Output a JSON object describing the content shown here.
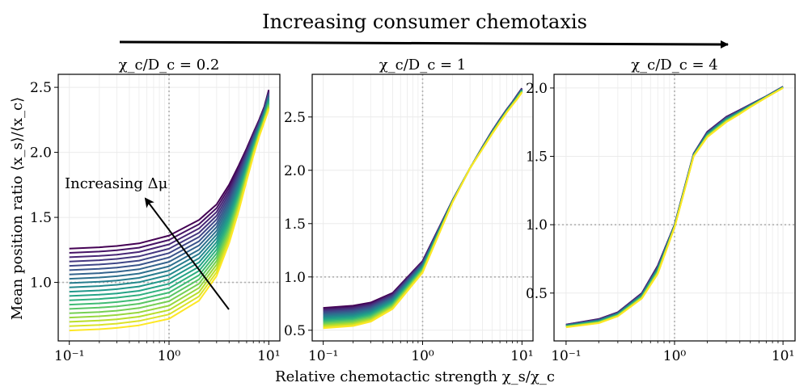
{
  "figure": {
    "banner": "Increasing consumer chemotaxis",
    "ylabel": "Mean position ratio ⟨x_s⟩/⟨x_c⟩",
    "xlabel": "Relative chemotactic strength χ_s/χ_c",
    "annotation": "Increasing Δμ"
  },
  "colors": {
    "viridis_stops": [
      "#440154",
      "#482878",
      "#3e4989",
      "#31688e",
      "#26828e",
      "#1f9e89",
      "#35b779",
      "#6ece58",
      "#b5de2b",
      "#fde725"
    ],
    "reference_line": "#b0b0b0",
    "grid": "#ebebeb"
  },
  "chart_data": [
    {
      "type": "line",
      "title": "χ_c/D_c = 0.2",
      "xscale": "log",
      "xlim": [
        0.1,
        10
      ],
      "ylim": [
        0.55,
        2.6
      ],
      "xticks": [
        "10⁻¹",
        "10⁰",
        "10¹"
      ],
      "yticks": [
        1.0,
        1.5,
        2.0,
        2.5
      ],
      "reference_lines": {
        "x": 1,
        "y": 1
      },
      "n_series": 20,
      "x": [
        0.1,
        0.2,
        0.3,
        0.5,
        1,
        2,
        3,
        4,
        5,
        6,
        7,
        8,
        9,
        10
      ],
      "series_range": {
        "upper_curve": [
          1.26,
          1.27,
          1.28,
          1.3,
          1.36,
          1.48,
          1.6,
          1.75,
          1.9,
          2.03,
          2.15,
          2.25,
          2.35,
          2.48
        ],
        "lower_curve": [
          0.63,
          0.64,
          0.65,
          0.67,
          0.72,
          0.86,
          1.05,
          1.3,
          1.55,
          1.78,
          1.97,
          2.12,
          2.23,
          2.33
        ]
      }
    },
    {
      "type": "line",
      "title": "χ_c/D_c = 1",
      "xscale": "log",
      "xlim": [
        0.1,
        10
      ],
      "ylim": [
        0.4,
        2.9
      ],
      "xticks": [
        "10⁻¹",
        "10⁰",
        "10¹"
      ],
      "yticks": [
        0.5,
        1.0,
        1.5,
        2.0,
        2.5
      ],
      "reference_lines": {
        "x": 1,
        "y": 1
      },
      "n_series": 20,
      "x": [
        0.1,
        0.2,
        0.3,
        0.5,
        1,
        2,
        3,
        4,
        5,
        6,
        7,
        8,
        9,
        10
      ],
      "series_range": {
        "upper_curve": [
          0.71,
          0.73,
          0.76,
          0.85,
          1.15,
          1.72,
          2.02,
          2.22,
          2.37,
          2.48,
          2.57,
          2.64,
          2.71,
          2.77
        ],
        "lower_curve": [
          0.52,
          0.54,
          0.58,
          0.7,
          1.04,
          1.7,
          2.02,
          2.2,
          2.34,
          2.45,
          2.54,
          2.61,
          2.67,
          2.73
        ]
      }
    },
    {
      "type": "line",
      "title": "χ_c/D_c = 4",
      "xscale": "log",
      "xlim": [
        0.1,
        10
      ],
      "ylim": [
        0.15,
        2.1
      ],
      "xticks": [
        "10⁻¹",
        "10⁰",
        "10¹"
      ],
      "yticks": [
        0.5,
        1.0,
        1.5,
        2.0
      ],
      "reference_lines": {
        "x": 1,
        "y": 1
      },
      "n_series": 20,
      "x": [
        0.1,
        0.2,
        0.3,
        0.5,
        0.7,
        1,
        1.5,
        2,
        3,
        4,
        5,
        7,
        10
      ],
      "series_range": {
        "upper_curve": [
          0.27,
          0.31,
          0.36,
          0.5,
          0.7,
          1.0,
          1.52,
          1.68,
          1.79,
          1.84,
          1.88,
          1.94,
          2.01
        ],
        "lower_curve": [
          0.25,
          0.28,
          0.33,
          0.46,
          0.64,
          0.98,
          1.5,
          1.64,
          1.75,
          1.81,
          1.86,
          1.93,
          2.0
        ]
      }
    }
  ]
}
